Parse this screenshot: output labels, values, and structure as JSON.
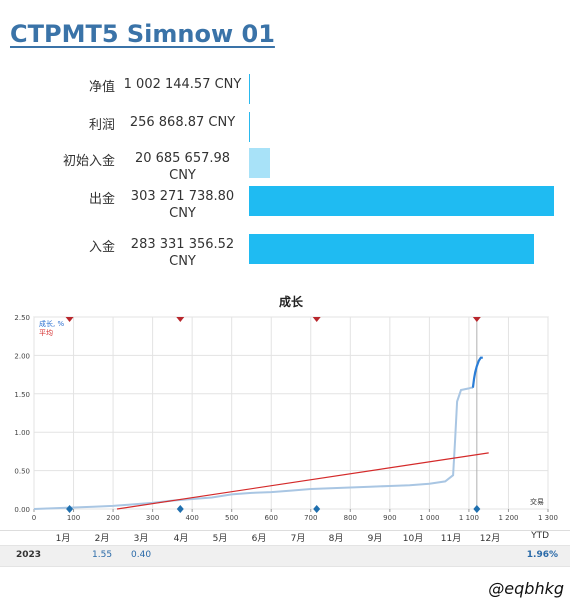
{
  "title": "CTPMT5 Simnow 01",
  "stats": [
    {
      "label": "净值",
      "value": "1 002 144.57 CNY",
      "ratio": 0.003,
      "color": "#29b9ee"
    },
    {
      "label": "利润",
      "value": "256 868.87 CNY",
      "ratio": 0.001,
      "color": "#29b9ee"
    },
    {
      "label": "初始入金",
      "value": "20 685 657.98 CNY",
      "ratio": 0.068,
      "color": "#a8e2f8"
    },
    {
      "label": "出金",
      "value": "303 271 738.80 CNY",
      "ratio": 1.0,
      "color": "#1fbbf2"
    },
    {
      "label": "入金",
      "value": "283 331 356.52 CNY",
      "ratio": 0.934,
      "color": "#1fbbf2"
    }
  ],
  "chart_data": {
    "type": "line",
    "title": "成长",
    "xlabel": "交易",
    "legend": [
      "成长, %",
      "平均"
    ],
    "legend_colors": [
      "#2a6fd1",
      "#d42a2a"
    ],
    "xlim": [
      0,
      1300
    ],
    "ylim": [
      0,
      2.5
    ],
    "x_ticks": [
      "0",
      "100",
      "200",
      "300",
      "400",
      "500",
      "600",
      "700",
      "800",
      "900",
      "1 000",
      "1 100",
      "1 200",
      "1 300"
    ],
    "x_tick_values": [
      0,
      100,
      200,
      300,
      400,
      500,
      600,
      700,
      800,
      900,
      1000,
      1100,
      1200,
      1300
    ],
    "y_ticks": [
      "0.00",
      "0.50",
      "1.00",
      "1.50",
      "2.00",
      "2.50"
    ],
    "y_tick_values": [
      0,
      0.5,
      1.0,
      1.5,
      2.0,
      2.5
    ],
    "series": [
      {
        "name": "成长, %",
        "color": "#a9c6e3",
        "x": [
          0,
          50,
          100,
          150,
          200,
          250,
          300,
          350,
          400,
          450,
          500,
          550,
          600,
          650,
          700,
          750,
          800,
          850,
          900,
          950,
          1000,
          1040,
          1060,
          1065,
          1070,
          1080,
          1100,
          1105,
          1110
        ],
        "y": [
          0.0,
          0.01,
          0.02,
          0.03,
          0.04,
          0.06,
          0.08,
          0.11,
          0.13,
          0.15,
          0.19,
          0.21,
          0.22,
          0.24,
          0.26,
          0.27,
          0.28,
          0.29,
          0.3,
          0.31,
          0.33,
          0.36,
          0.44,
          0.9,
          1.4,
          1.55,
          1.57,
          1.58,
          1.58
        ]
      },
      {
        "name": "",
        "color": "#2a7dd6",
        "x": [
          1110,
          1113,
          1116,
          1120,
          1125,
          1130,
          1135
        ],
        "y": [
          1.58,
          1.7,
          1.78,
          1.86,
          1.93,
          1.97,
          1.97
        ]
      },
      {
        "name": "平均",
        "color": "#d42a2a",
        "x": [
          210,
          1150
        ],
        "y": [
          0.0,
          0.73
        ]
      }
    ],
    "markers_top": [
      90,
      370,
      715,
      1120
    ],
    "markers_bottom": [
      90,
      370,
      715,
      1120
    ]
  },
  "months": [
    "1月",
    "2月",
    "3月",
    "4月",
    "5月",
    "6月",
    "7月",
    "8月",
    "9月",
    "10月",
    "11月",
    "12月"
  ],
  "ytd_label": "YTD",
  "year_row": {
    "year": "2023",
    "m2": "1.55",
    "m3": "0.40",
    "ytd": "1.96%"
  },
  "watermark": "@eqbhkg"
}
